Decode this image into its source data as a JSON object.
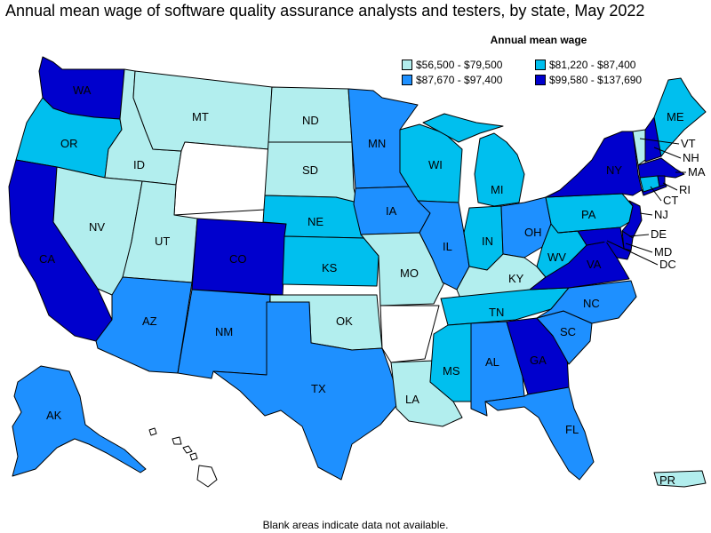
{
  "title": "Annual mean wage of software quality assurance analysts and testers, by state, May 2022",
  "legend": {
    "title": "Annual mean wage",
    "items": [
      {
        "label": "$56,500 - $79,500",
        "color": "#b2eeee"
      },
      {
        "label": "$81,220 - $87,400",
        "color": "#00bfee"
      },
      {
        "label": "$87,670 - $97,400",
        "color": "#1e90ff"
      },
      {
        "label": "$99,580 - $137,690",
        "color": "#0000cd"
      }
    ]
  },
  "note": "Blank areas indicate data not available.",
  "colors": {
    "q1": "#b2eeee",
    "q2": "#00bfee",
    "q3": "#1e90ff",
    "q4": "#0000cd",
    "na": "#ffffff"
  },
  "states": {
    "WA": {
      "label": "WA",
      "bin": "$99,580 - $137,690"
    },
    "OR": {
      "label": "OR",
      "bin": "$81,220 - $87,400"
    },
    "CA": {
      "label": "CA",
      "bin": "$99,580 - $137,690"
    },
    "ID": {
      "label": "ID",
      "bin": "$56,500 - $79,500"
    },
    "NV": {
      "label": "NV",
      "bin": "$56,500 - $79,500"
    },
    "MT": {
      "label": "MT",
      "bin": "$56,500 - $79,500"
    },
    "WY": {
      "label": "",
      "bin": ""
    },
    "UT": {
      "label": "UT",
      "bin": "$56,500 - $79,500"
    },
    "AZ": {
      "label": "AZ",
      "bin": "$87,670 - $97,400"
    },
    "CO": {
      "label": "CO",
      "bin": "$99,580 - $137,690"
    },
    "NM": {
      "label": "NM",
      "bin": "$87,670 - $97,400"
    },
    "ND": {
      "label": "ND",
      "bin": "$56,500 - $79,500"
    },
    "SD": {
      "label": "SD",
      "bin": "$56,500 - $79,500"
    },
    "NE": {
      "label": "NE",
      "bin": "$81,220 - $87,400"
    },
    "KS": {
      "label": "KS",
      "bin": "$81,220 - $87,400"
    },
    "OK": {
      "label": "OK",
      "bin": "$56,500 - $79,500"
    },
    "TX": {
      "label": "TX",
      "bin": "$87,670 - $97,400"
    },
    "MN": {
      "label": "MN",
      "bin": "$87,670 - $97,400"
    },
    "IA": {
      "label": "IA",
      "bin": "$87,670 - $97,400"
    },
    "MO": {
      "label": "MO",
      "bin": "$56,500 - $79,500"
    },
    "AR": {
      "label": "",
      "bin": ""
    },
    "LA": {
      "label": "LA",
      "bin": "$56,500 - $79,500"
    },
    "WI": {
      "label": "WI",
      "bin": "$81,220 - $87,400"
    },
    "IL": {
      "label": "IL",
      "bin": "$87,670 - $97,400"
    },
    "MI": {
      "label": "MI",
      "bin": "$81,220 - $87,400"
    },
    "IN": {
      "label": "IN",
      "bin": "$81,220 - $87,400"
    },
    "OH": {
      "label": "OH",
      "bin": "$87,670 - $97,400"
    },
    "KY": {
      "label": "KY",
      "bin": "$56,500 - $79,500"
    },
    "TN": {
      "label": "TN",
      "bin": "$81,220 - $87,400"
    },
    "MS": {
      "label": "MS",
      "bin": "$81,220 - $87,400"
    },
    "AL": {
      "label": "AL",
      "bin": "$87,670 - $97,400"
    },
    "GA": {
      "label": "GA",
      "bin": "$99,580 - $137,690"
    },
    "FL": {
      "label": "FL",
      "bin": "$87,670 - $97,400"
    },
    "SC": {
      "label": "SC",
      "bin": "$87,670 - $97,400"
    },
    "NC": {
      "label": "NC",
      "bin": "$87,670 - $97,400"
    },
    "VA": {
      "label": "VA",
      "bin": "$99,580 - $137,690"
    },
    "WV": {
      "label": "WV",
      "bin": "$81,220 - $87,400"
    },
    "PA": {
      "label": "PA",
      "bin": "$81,220 - $87,400"
    },
    "NY": {
      "label": "NY",
      "bin": "$99,580 - $137,690"
    },
    "ME": {
      "label": "ME",
      "bin": "$81,220 - $87,400"
    },
    "VT": {
      "label": "VT",
      "bin": "$56,500 - $79,500"
    },
    "NH": {
      "label": "NH",
      "bin": "$99,580 - $137,690"
    },
    "MA": {
      "label": "MA",
      "bin": "$99,580 - $137,690"
    },
    "RI": {
      "label": "RI",
      "bin": "$99,580 - $137,690"
    },
    "CT": {
      "label": "CT",
      "bin": "$81,220 - $87,400"
    },
    "NJ": {
      "label": "NJ",
      "bin": "$99,580 - $137,690"
    },
    "DE": {
      "label": "DE",
      "bin": "$99,580 - $137,690"
    },
    "MD": {
      "label": "MD",
      "bin": "$99,580 - $137,690"
    },
    "DC": {
      "label": "DC",
      "bin": "$99,580 - $137,690"
    },
    "AK": {
      "label": "AK",
      "bin": "$87,670 - $97,400"
    },
    "HI": {
      "label": "",
      "bin": ""
    },
    "PR": {
      "label": "PR",
      "bin": "$56,500 - $79,500"
    }
  }
}
